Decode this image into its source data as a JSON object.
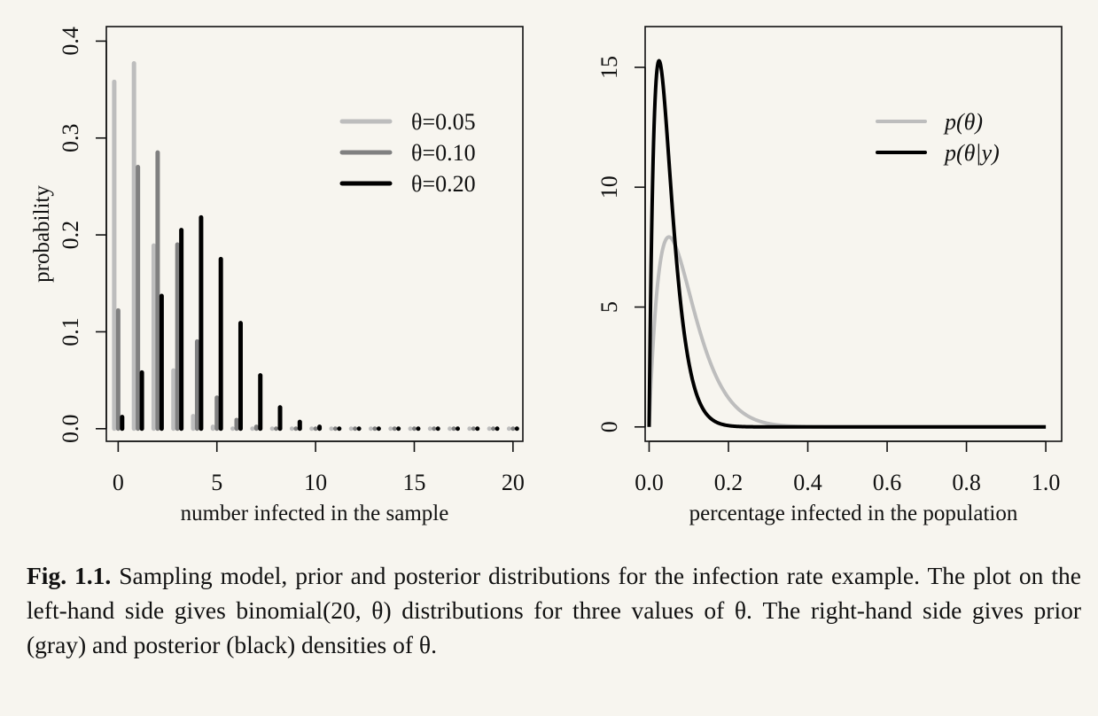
{
  "chart_data": [
    {
      "type": "bar",
      "xlabel": "number infected in the sample",
      "ylabel": "probability",
      "xlim": [
        -0.6,
        20.5
      ],
      "ylim": [
        -0.013,
        0.415
      ],
      "xticks": [
        0,
        5,
        10,
        15,
        20
      ],
      "yticks": [
        0.0,
        0.1,
        0.2,
        0.3,
        0.4
      ],
      "ytick_labels": [
        "0.0",
        "0.1",
        "0.2",
        "0.3",
        "0.4"
      ],
      "legend_position": "top-right",
      "categories": [
        0,
        1,
        2,
        3,
        4,
        5,
        6,
        7,
        8,
        9,
        10,
        11,
        12,
        13,
        14,
        15,
        16,
        17,
        18,
        19,
        20
      ],
      "series": [
        {
          "name": "θ=0.05",
          "color": "#bdbdbd",
          "values": [
            0.358,
            0.377,
            0.189,
            0.06,
            0.013,
            0.002,
            0,
            0,
            0,
            0,
            0,
            0,
            0,
            0,
            0,
            0,
            0,
            0,
            0,
            0,
            0
          ]
        },
        {
          "name": "θ=0.10",
          "color": "#808080",
          "values": [
            0.122,
            0.27,
            0.285,
            0.19,
            0.09,
            0.032,
            0.009,
            0.002,
            0,
            0,
            0,
            0,
            0,
            0,
            0,
            0,
            0,
            0,
            0,
            0,
            0
          ]
        },
        {
          "name": "θ=0.20",
          "color": "#000000",
          "values": [
            0.012,
            0.058,
            0.137,
            0.205,
            0.218,
            0.175,
            0.109,
            0.055,
            0.022,
            0.007,
            0.002,
            0,
            0,
            0,
            0,
            0,
            0,
            0,
            0,
            0,
            0
          ]
        }
      ]
    },
    {
      "type": "line",
      "xlabel": "percentage infected in the population",
      "ylabel": "",
      "xlim": [
        -0.01,
        1.04
      ],
      "ylim": [
        -0.6,
        16.7
      ],
      "xticks": [
        0.0,
        0.2,
        0.4,
        0.6,
        0.8,
        1.0
      ],
      "xtick_labels": [
        "0.0",
        "0.2",
        "0.4",
        "0.6",
        "0.8",
        "1.0"
      ],
      "yticks": [
        0,
        5,
        10,
        15
      ],
      "legend_position": "top-right",
      "series": [
        {
          "name": "p(θ)",
          "color": "#bdbdbd",
          "beta": [
            2,
            20
          ]
        },
        {
          "name": "p(θ|y)",
          "color": "#000000",
          "beta": [
            2,
            40
          ]
        }
      ]
    }
  ],
  "caption": {
    "label": "Fig. 1.1.",
    "text": "Sampling model, prior and posterior distributions for the infection rate example. The plot on the left-hand side gives binomial(20, θ) distributions for three values of θ. The right-hand side gives prior (gray) and posterior (black) densities of θ."
  }
}
